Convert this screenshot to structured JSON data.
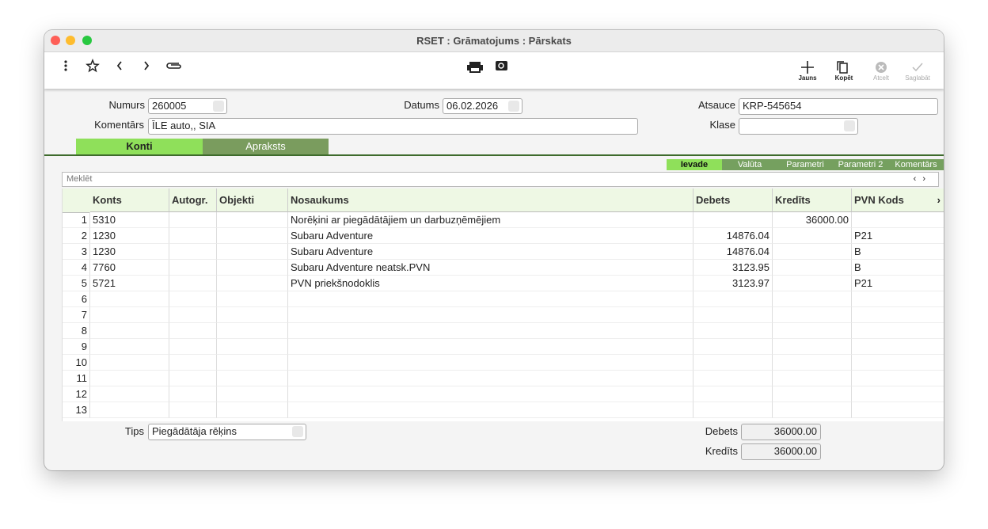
{
  "window": {
    "title": "RSET : Grāmatojums : Pārskats"
  },
  "toolbar": {
    "jauns": "Jauns",
    "kopet": "Kopēt",
    "atcelt": "Atcelt",
    "saglabat": "Saglabāt"
  },
  "header": {
    "numurs": {
      "label": "Numurs",
      "value": "260005"
    },
    "datums": {
      "label": "Datums",
      "value": "06.02.2026"
    },
    "atsauce": {
      "label": "Atsauce",
      "value": "KRP-545654"
    },
    "komentars": {
      "label": "Komentārs",
      "value": "ĪLE auto,, SIA"
    },
    "klase": {
      "label": "Klase"
    }
  },
  "tabs": [
    "Konti",
    "Apraksts"
  ],
  "subtabs": [
    "Ievade",
    "Valūta",
    "Parametri",
    "Parametri 2",
    "Komentārs"
  ],
  "search": {
    "placeholder": "Meklēt"
  },
  "table": {
    "columns": [
      "Konts",
      "Autogr.",
      "Objekti",
      "Nosaukums",
      "Debets",
      "Kredīts",
      "PVN Kods"
    ],
    "rows": [
      {
        "n": 1,
        "konts": "5310",
        "nosaukums": "Norēķini ar piegādātājiem un darbuzņēmējiem",
        "kredits": "36000.00"
      },
      {
        "n": 2,
        "konts": "1230",
        "nosaukums": "Subaru Adventure",
        "debets": "14876.04",
        "pvn": "P21"
      },
      {
        "n": 3,
        "konts": "1230",
        "nosaukums": "Subaru Adventure",
        "debets": "14876.04",
        "pvn": "B"
      },
      {
        "n": 4,
        "konts": "7760",
        "nosaukums": "Subaru Adventure neatsk.PVN",
        "debets": "3123.95",
        "pvn": "B"
      },
      {
        "n": 5,
        "konts": "5721",
        "nosaukums": "PVN priekšnodoklis",
        "debets": "3123.97",
        "pvn": "P21"
      },
      {
        "n": 6
      },
      {
        "n": 7
      },
      {
        "n": 8
      },
      {
        "n": 9
      },
      {
        "n": 10
      },
      {
        "n": 11
      },
      {
        "n": 12
      },
      {
        "n": 13
      }
    ]
  },
  "footer": {
    "tips": {
      "label": "Tips",
      "value": "Piegādātāja rēķins"
    },
    "debets": {
      "label": "Debets",
      "value": "36000.00"
    },
    "kredits": {
      "label": "Kredīts",
      "value": "36000.00"
    }
  }
}
